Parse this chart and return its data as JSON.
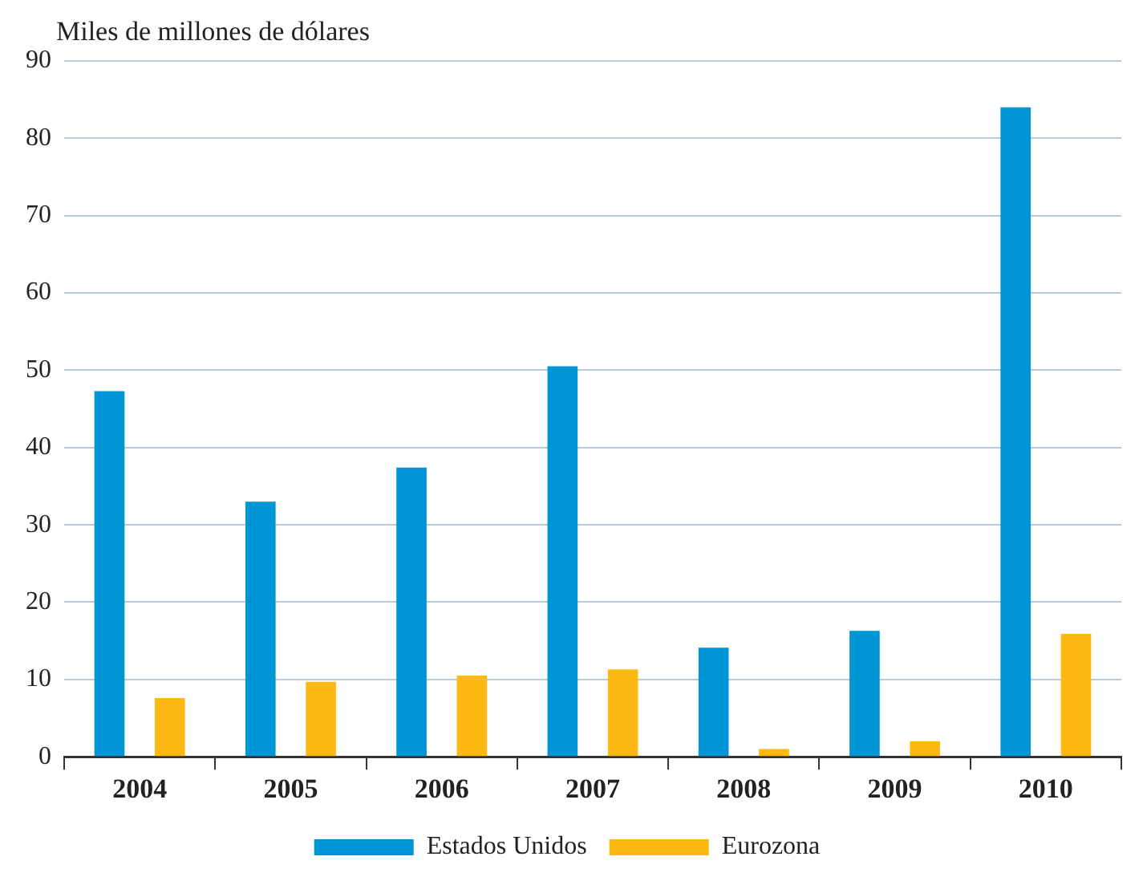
{
  "chart_data": {
    "type": "bar",
    "ylabel": "Miles de millones de dólares",
    "categories": [
      "2004",
      "2005",
      "2006",
      "2007",
      "2008",
      "2009",
      "2010"
    ],
    "series": [
      {
        "name": "Estados Unidos",
        "color": "#0096d6",
        "values": [
          47.3,
          33.0,
          37.4,
          50.5,
          14.1,
          16.3,
          84.0
        ]
      },
      {
        "name": "Eurozona",
        "color": "#fdb913",
        "values": [
          7.6,
          9.7,
          10.5,
          11.3,
          1.0,
          2.0,
          15.9
        ]
      }
    ],
    "ylim": [
      0,
      90
    ],
    "yticks": [
      0,
      10,
      20,
      30,
      40,
      50,
      60,
      70,
      80,
      90
    ],
    "grid": "y",
    "legend": "bottom"
  }
}
